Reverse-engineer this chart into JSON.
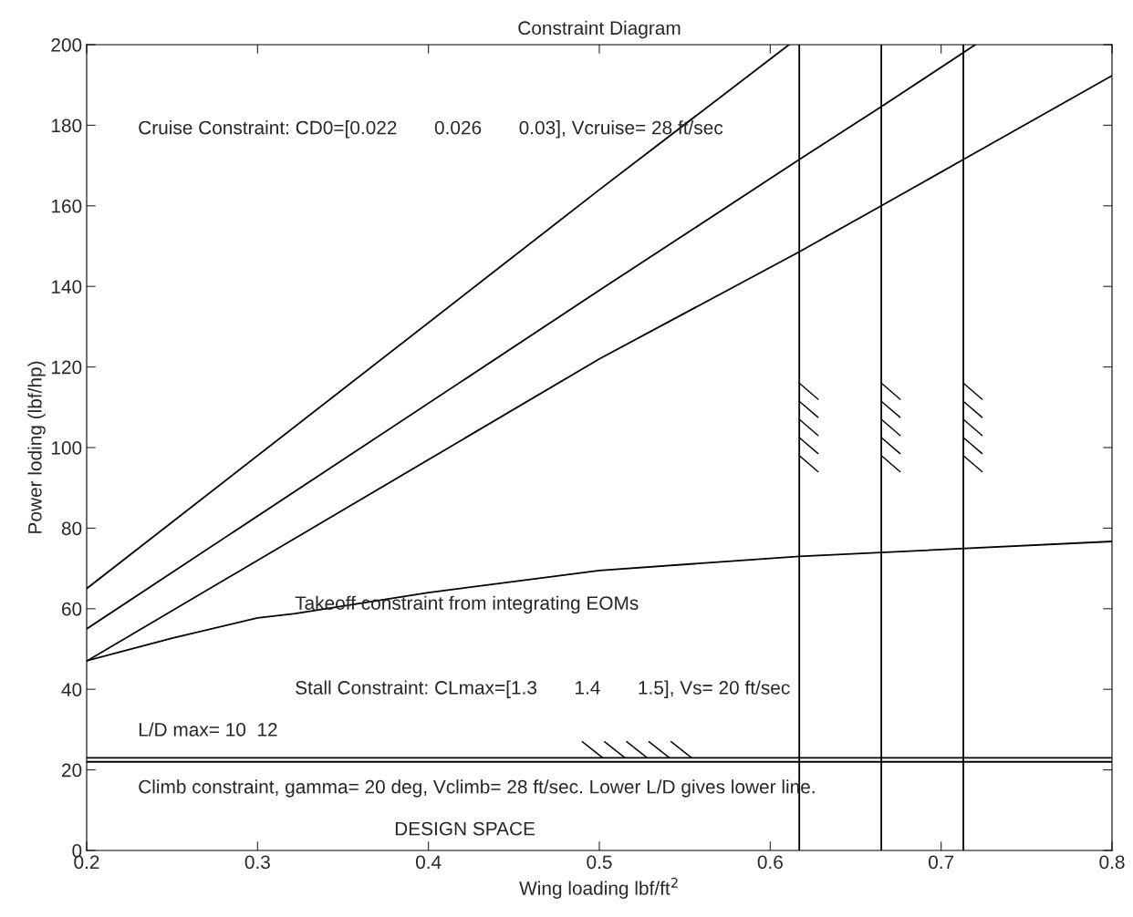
{
  "chart_data": {
    "type": "line",
    "title": "Constraint Diagram",
    "xlabel": "Wing loading lbf/ft$^{2}$",
    "ylabel": "Power loding (lbf/hp)",
    "xlim": [
      0.2,
      0.8
    ],
    "ylim": [
      0,
      200
    ],
    "xticks": [
      0.2,
      0.3,
      0.4,
      0.5,
      0.6,
      0.7,
      0.8
    ],
    "yticks": [
      0,
      20,
      40,
      60,
      80,
      100,
      120,
      140,
      160,
      180,
      200
    ],
    "grid": false,
    "legend": false,
    "marker": "none",
    "line_style": "solid",
    "series": [
      {
        "color": "#000000",
        "x": [
          0.2,
          0.5,
          0.611
        ],
        "values": [
          65,
          164,
          200
        ]
      },
      {
        "color": "#000000",
        "x": [
          0.2,
          0.5,
          0.617,
          0.665,
          0.713,
          0.72
        ],
        "values": [
          55,
          139,
          171.5,
          184.6,
          198,
          200
        ]
      },
      {
        "color": "#000000",
        "x": [
          0.2,
          0.5,
          0.617,
          0.665,
          0.713,
          0.8
        ],
        "values": [
          47,
          122,
          148.6,
          160,
          171.5,
          192.3
        ]
      },
      {
        "color": "#000000",
        "x": [
          0.2,
          0.25,
          0.3,
          0.322,
          0.4,
          0.5,
          0.617,
          0.8
        ],
        "values": [
          47.1,
          52.7,
          57.7,
          58.8,
          64,
          69.5,
          73,
          76.7
        ]
      }
    ],
    "ref_lines": [
      {
        "axis": "x",
        "value": 0.617,
        "color": "#000000"
      },
      {
        "axis": "x",
        "value": 0.665,
        "color": "#000000"
      },
      {
        "axis": "x",
        "value": 0.713,
        "color": "#000000"
      },
      {
        "axis": "y",
        "value": 22,
        "color": "#000000"
      },
      {
        "axis": "y",
        "value": 23,
        "color": "#000000"
      }
    ],
    "annotations": [
      "Cruise Constraint: CD0=[0.022       0.026       0.03], Vcruise= 28 ft/sec",
      "Takeoff constraint from integrating EOMs",
      "Stall Constraint: CLmax=[1.3       1.4       1.5], Vs= 20 ft/sec",
      "L/D max= 10  12",
      "Climb constraint, gamma= 20 deg, Vclimb= 28 ft/sec. Lower L/D gives lower line.",
      "DESIGN SPACE"
    ]
  }
}
